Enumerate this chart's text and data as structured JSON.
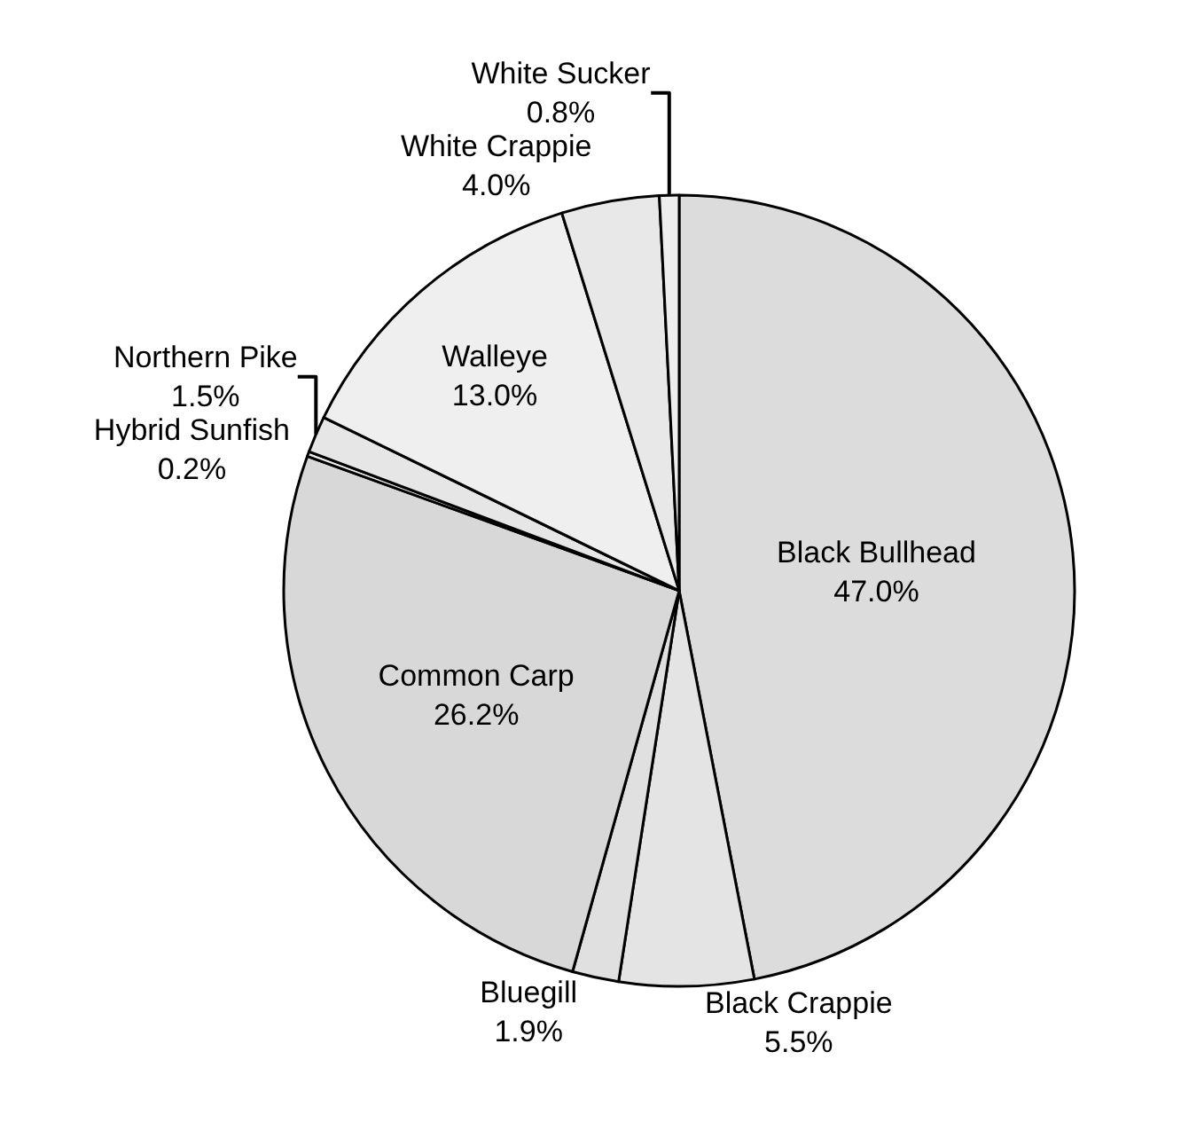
{
  "chart_data": {
    "type": "pie",
    "categories": [
      "Black Bullhead",
      "Black Crappie",
      "Bluegill",
      "Common Carp",
      "Hybrid Sunfish",
      "Northern Pike",
      "Walleye",
      "White Crappie",
      "White Sucker"
    ],
    "values": [
      47.0,
      5.5,
      1.9,
      26.2,
      0.2,
      1.5,
      13.0,
      4.0,
      0.8
    ],
    "value_labels": [
      "47.0%",
      "5.5%",
      "1.9%",
      "26.2%",
      "0.2%",
      "1.5%",
      "13.0%",
      "4.0%",
      "0.8%"
    ],
    "colors": [
      "#dcdcdc",
      "#e4e4e4",
      "#e0e0e0",
      "#d8d8d8",
      "#ececec",
      "#e6e6e6",
      "#efefef",
      "#e8e8e8",
      "#eeeeee"
    ],
    "legend": false
  }
}
